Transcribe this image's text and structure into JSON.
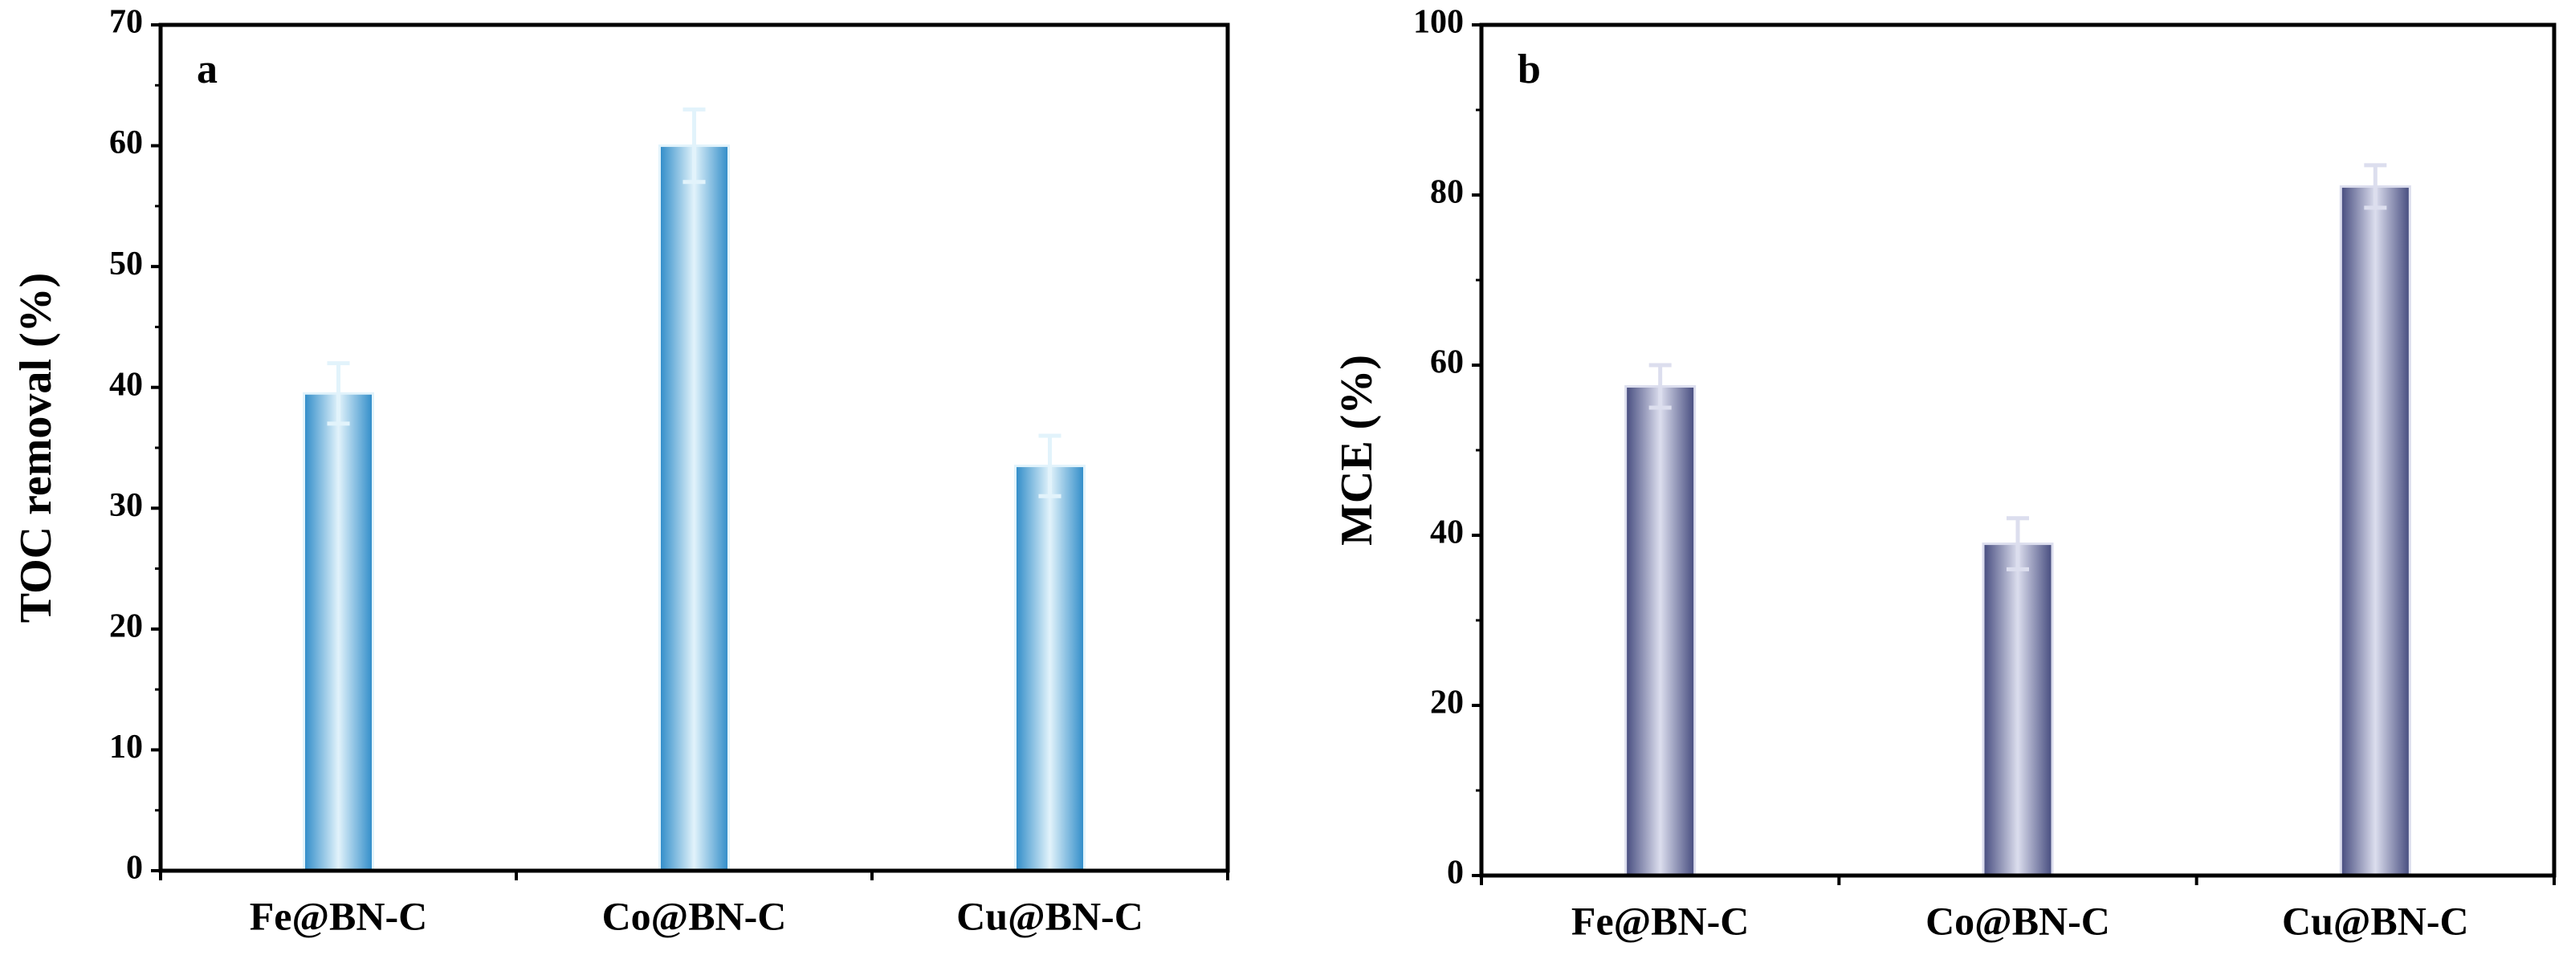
{
  "chart_data": [
    {
      "type": "bar",
      "panel_label": "a",
      "y_label": "TOC removal (%)",
      "categories": [
        "Fe@BN-C",
        "Co@BN-C",
        "Cu@BN-C"
      ],
      "values": [
        39.5,
        60,
        33.5
      ],
      "errors": [
        2.5,
        3,
        2.5
      ],
      "color": "#2e8bc8",
      "highlight_color": "#e2f3fb",
      "ylim": [
        0,
        70
      ],
      "yticks": [
        0,
        10,
        20,
        30,
        40,
        50,
        60,
        70
      ]
    },
    {
      "type": "bar",
      "panel_label": "b",
      "y_label": "MCE (%)",
      "categories": [
        "Fe@BN-C",
        "Co@BN-C",
        "Cu@BN-C"
      ],
      "values": [
        57.5,
        39,
        81
      ],
      "errors": [
        2.5,
        3,
        2.5
      ],
      "color": "#454b7e",
      "highlight_color": "#dcdeee",
      "ylim": [
        0,
        100
      ],
      "yticks": [
        0,
        20,
        40,
        60,
        80,
        100
      ]
    }
  ]
}
